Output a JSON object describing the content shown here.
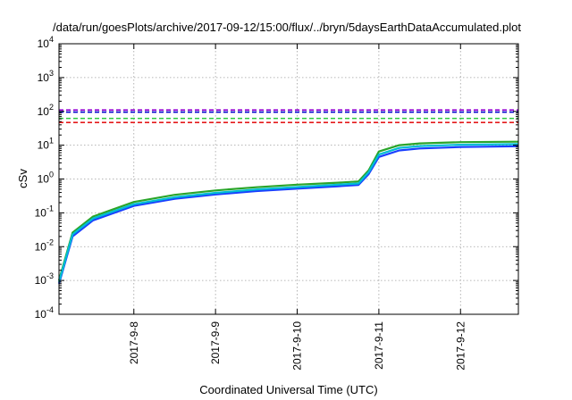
{
  "chart_data": {
    "type": "line",
    "title": "/data/run/goesPlots/archive/2017-09-12/15:00/flux/../bryn/5daysEarthDataAccumulated.plot",
    "xlabel": "Coordinated Universal Time (UTC)",
    "ylabel": "cSv",
    "y_scale": "log",
    "ylim": [
      0.0001,
      10000
    ],
    "xlim": [
      "2017-09-07T02:00",
      "2017-09-12T17:00"
    ],
    "grid": true,
    "x_ticks": [
      "2017-9-8",
      "2017-9-9",
      "2017-9-10",
      "2017-9-11",
      "2017-9-12"
    ],
    "y_ticks": [
      {
        "base": "10",
        "exp": "-4"
      },
      {
        "base": "10",
        "exp": "-3"
      },
      {
        "base": "10",
        "exp": "-2"
      },
      {
        "base": "10",
        "exp": "-1"
      },
      {
        "base": "10",
        "exp": "0"
      },
      {
        "base": "10",
        "exp": "1"
      },
      {
        "base": "10",
        "exp": "2"
      },
      {
        "base": "10",
        "exp": "3"
      },
      {
        "base": "10",
        "exp": "4"
      }
    ],
    "thresholds": [
      {
        "value": 110,
        "color": "#9400d3"
      },
      {
        "value": 95,
        "color": "#0000cd"
      },
      {
        "value": 62,
        "color": "#2ecc40"
      },
      {
        "value": 47,
        "color": "#e41a1c"
      }
    ],
    "series": [
      {
        "color": "#1a3fff",
        "x": [
          "2017-09-07T02:00",
          "2017-09-07T06:00",
          "2017-09-07T12:00",
          "2017-09-08T00:00",
          "2017-09-08T12:00",
          "2017-09-09T00:00",
          "2017-09-09T12:00",
          "2017-09-10T00:00",
          "2017-09-10T12:00",
          "2017-09-10T18:00",
          "2017-09-10T21:00",
          "2017-09-11T00:00",
          "2017-09-11T06:00",
          "2017-09-11T12:00",
          "2017-09-12T00:00",
          "2017-09-12T17:00"
        ],
        "values": [
          0.0008,
          0.02,
          0.06,
          0.16,
          0.26,
          0.35,
          0.44,
          0.52,
          0.61,
          0.67,
          1.4,
          4.5,
          7.0,
          8.0,
          8.8,
          9.3
        ]
      },
      {
        "color": "#2aa52a",
        "x": [
          "2017-09-07T02:00",
          "2017-09-07T06:00",
          "2017-09-07T12:00",
          "2017-09-08T00:00",
          "2017-09-08T12:00",
          "2017-09-09T00:00",
          "2017-09-09T12:00",
          "2017-09-10T00:00",
          "2017-09-10T12:00",
          "2017-09-10T18:00",
          "2017-09-10T21:00",
          "2017-09-11T00:00",
          "2017-09-11T06:00",
          "2017-09-11T12:00",
          "2017-09-12T00:00",
          "2017-09-12T17:00"
        ],
        "values": [
          0.001,
          0.026,
          0.078,
          0.21,
          0.34,
          0.46,
          0.57,
          0.68,
          0.78,
          0.85,
          1.8,
          6.5,
          10.0,
          11.3,
          12.3,
          12.7
        ]
      },
      {
        "color": "#00bcd4",
        "x": [
          "2017-09-07T02:00",
          "2017-09-07T06:00",
          "2017-09-07T12:00",
          "2017-09-08T00:00",
          "2017-09-08T12:00",
          "2017-09-09T00:00",
          "2017-09-09T12:00",
          "2017-09-10T00:00",
          "2017-09-10T12:00",
          "2017-09-10T18:00",
          "2017-09-10T21:00",
          "2017-09-11T00:00",
          "2017-09-11T06:00",
          "2017-09-11T12:00",
          "2017-09-12T00:00",
          "2017-09-12T17:00"
        ],
        "values": [
          0.0009,
          0.023,
          0.068,
          0.18,
          0.29,
          0.39,
          0.49,
          0.58,
          0.68,
          0.74,
          1.6,
          5.3,
          8.3,
          9.4,
          10.3,
          10.8
        ]
      }
    ]
  }
}
